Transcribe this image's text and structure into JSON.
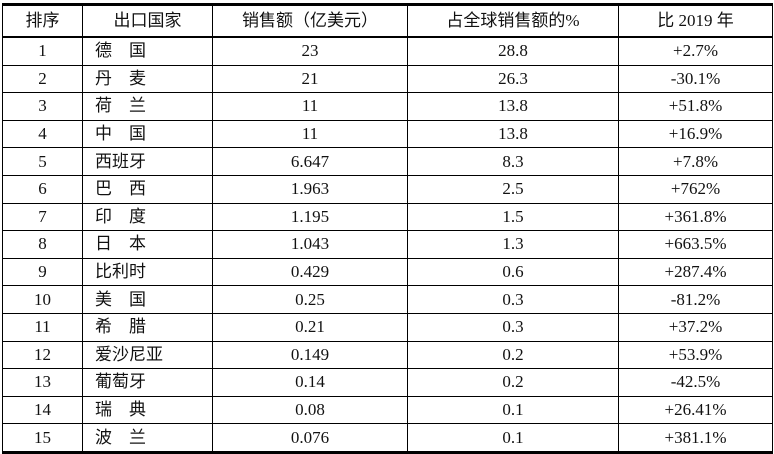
{
  "table": {
    "headers": [
      "排序",
      "出口国家",
      "销售额（亿美元）",
      "占全球销售额的%",
      "比 2019 年"
    ],
    "rows": [
      [
        "1",
        "德　国",
        "23",
        "28.8",
        "+2.7%"
      ],
      [
        "2",
        "丹　麦",
        "21",
        "26.3",
        "-30.1%"
      ],
      [
        "3",
        "荷　兰",
        "11",
        "13.8",
        "+51.8%"
      ],
      [
        "4",
        "中　国",
        "11",
        "13.8",
        "+16.9%"
      ],
      [
        "5",
        "西班牙",
        "6.647",
        "8.3",
        "+7.8%"
      ],
      [
        "6",
        "巴　西",
        "1.963",
        "2.5",
        "+762%"
      ],
      [
        "7",
        "印　度",
        "1.195",
        "1.5",
        "+361.8%"
      ],
      [
        "8",
        "日　本",
        "1.043",
        "1.3",
        "+663.5%"
      ],
      [
        "9",
        "比利时",
        "0.429",
        "0.6",
        "+287.4%"
      ],
      [
        "10",
        "美　国",
        "0.25",
        "0.3",
        "-81.2%"
      ],
      [
        "11",
        "希　腊",
        "0.21",
        "0.3",
        "+37.2%"
      ],
      [
        "12",
        "爱沙尼亚",
        "0.149",
        "0.2",
        "+53.9%"
      ],
      [
        "13",
        "葡萄牙",
        "0.14",
        "0.2",
        "-42.5%"
      ],
      [
        "14",
        "瑞　典",
        "0.08",
        "0.1",
        "+26.41%"
      ],
      [
        "15",
        "波　兰",
        "0.076",
        "0.1",
        "+381.1%"
      ]
    ]
  }
}
